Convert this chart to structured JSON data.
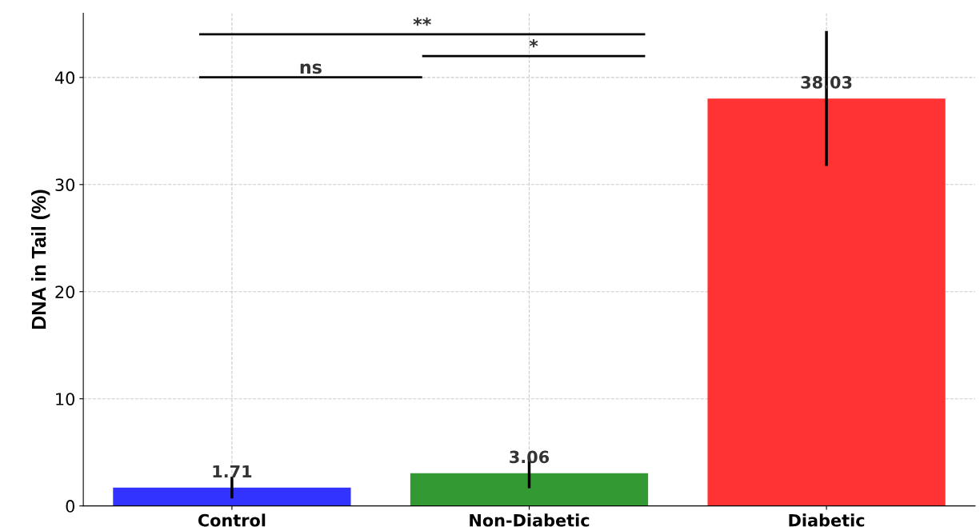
{
  "chart_data": {
    "type": "bar",
    "ylabel": "DNA in Tail (%)",
    "categories": [
      "Control",
      "Non-Diabetic",
      "Diabetic"
    ],
    "values": [
      1.71,
      3.06,
      38.03
    ],
    "colors": [
      "#3333ff",
      "#339933",
      "#ff3333"
    ],
    "errors": [
      1.0,
      1.4,
      6.3
    ],
    "data_labels": true,
    "ylim": [
      0,
      46
    ],
    "yticks": [
      0,
      10,
      20,
      30,
      40
    ],
    "grid": true,
    "annotations": [
      "ns",
      "*",
      "**"
    ]
  }
}
